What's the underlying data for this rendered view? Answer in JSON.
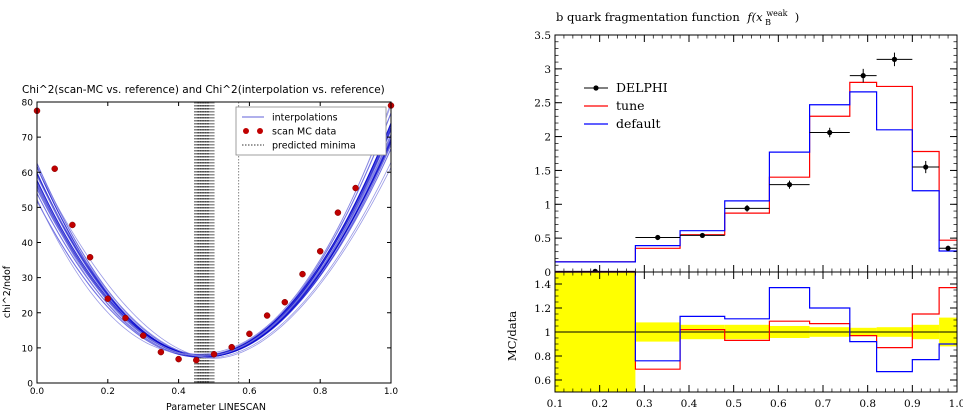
{
  "chart_data": [
    {
      "type": "line",
      "title": "Chi^2(scan-MC vs. reference) and Chi^2(interpolation vs. reference)",
      "xlabel": "Parameter LINESCAN",
      "ylabel": "chi^2/ndof",
      "xlim": [
        0.0,
        1.0
      ],
      "ylim": [
        0,
        80
      ],
      "xticks": [
        "0.0",
        "0.2",
        "0.4",
        "0.6",
        "0.8",
        "1.0"
      ],
      "yticks": [
        "0",
        "10",
        "20",
        "30",
        "40",
        "50",
        "60",
        "70",
        "80"
      ],
      "legend_position": "top-right",
      "legend": [
        "interpolations",
        "scan MC data",
        "predicted minima"
      ],
      "interpolation_curves": [
        {
          "a": 7.6,
          "b": 0.47,
          "k": 225,
          "p": 2.0
        },
        {
          "a": 7.8,
          "b": 0.468,
          "k": 228,
          "p": 2.0
        },
        {
          "a": 7.4,
          "b": 0.472,
          "k": 222,
          "p": 2.0
        },
        {
          "a": 7.7,
          "b": 0.465,
          "k": 231,
          "p": 2.0
        },
        {
          "a": 7.5,
          "b": 0.475,
          "k": 219,
          "p": 2.0
        },
        {
          "a": 7.9,
          "b": 0.47,
          "k": 235,
          "p": 2.0
        },
        {
          "a": 7.3,
          "b": 0.466,
          "k": 215,
          "p": 2.0
        },
        {
          "a": 7.6,
          "b": 0.474,
          "k": 240,
          "p": 2.0
        },
        {
          "a": 7.8,
          "b": 0.462,
          "k": 226,
          "p": 2.0
        },
        {
          "a": 7.5,
          "b": 0.478,
          "k": 229,
          "p": 2.0
        },
        {
          "a": 8.0,
          "b": 0.47,
          "k": 218,
          "p": 2.0
        },
        {
          "a": 7.6,
          "b": 0.471,
          "k": 233,
          "p": 2.0
        },
        {
          "a": 7.4,
          "b": 0.46,
          "k": 210,
          "p": 2.0
        },
        {
          "a": 7.7,
          "b": 0.48,
          "k": 238,
          "p": 2.0
        },
        {
          "a": 7.5,
          "b": 0.469,
          "k": 246,
          "p": 2.0
        },
        {
          "a": 7.8,
          "b": 0.473,
          "k": 212,
          "p": 2.0
        },
        {
          "a": 7.9,
          "b": 0.455,
          "k": 255,
          "p": 2.1
        },
        {
          "a": 7.2,
          "b": 0.49,
          "k": 200,
          "p": 1.9
        },
        {
          "a": 8.2,
          "b": 0.445,
          "k": 262,
          "p": 2.2
        },
        {
          "a": 7.0,
          "b": 0.5,
          "k": 196,
          "p": 1.85
        },
        {
          "a": 7.6,
          "b": 0.47,
          "k": 224,
          "p": 2.0
        },
        {
          "a": 7.7,
          "b": 0.467,
          "k": 221,
          "p": 2.0
        }
      ],
      "scan_points": {
        "x": [
          0.0,
          0.05,
          0.1,
          0.15,
          0.2,
          0.25,
          0.3,
          0.35,
          0.4,
          0.45,
          0.5,
          0.55,
          0.6,
          0.65,
          0.7,
          0.75,
          0.8,
          0.85,
          0.9,
          0.95,
          1.0
        ],
        "y": [
          77.5,
          61.0,
          45.0,
          35.8,
          24.0,
          18.5,
          13.5,
          8.8,
          6.8,
          6.5,
          8.2,
          10.2,
          14.0,
          19.2,
          23.0,
          31.0,
          37.5,
          48.5,
          55.5,
          67.5,
          79.0
        ]
      },
      "predicted_minima": [
        0.445,
        0.448,
        0.451,
        0.453,
        0.455,
        0.457,
        0.459,
        0.461,
        0.463,
        0.465,
        0.467,
        0.469,
        0.471,
        0.473,
        0.475,
        0.477,
        0.479,
        0.481,
        0.483,
        0.485,
        0.488,
        0.491,
        0.494,
        0.497,
        0.5,
        0.57
      ]
    },
    {
      "type": "line",
      "title": "b quark fragmentation function",
      "title_math": "f(x",
      "title_sub": "B",
      "title_sup": "weak",
      "title_tail": ")",
      "xlim": [
        0.1,
        1.0
      ],
      "ylim": [
        0,
        3.5
      ],
      "xticks": [
        "0.1",
        "0.2",
        "0.3",
        "0.4",
        "0.5",
        "0.6",
        "0.7",
        "0.8",
        "0.9",
        "1.0"
      ],
      "yticks": [
        "0",
        "0.5",
        "1",
        "1.5",
        "2",
        "2.5",
        "3",
        "3.5"
      ],
      "legend_position": "top-left",
      "bin_edges": [
        0.1,
        0.28,
        0.38,
        0.48,
        0.58,
        0.67,
        0.76,
        0.82,
        0.9,
        0.96,
        1.0
      ],
      "series": [
        {
          "name": "DELPHI",
          "x": [
            0.19,
            0.33,
            0.43,
            0.53,
            0.625,
            0.715,
            0.79,
            0.86,
            0.93,
            0.98
          ],
          "y": [
            0.01,
            0.51,
            0.54,
            0.94,
            1.29,
            2.06,
            2.9,
            3.14,
            1.55,
            0.35
          ],
          "yerr": [
            0.02,
            0.03,
            0.03,
            0.05,
            0.06,
            0.07,
            0.1,
            0.1,
            0.09,
            0.04
          ]
        },
        {
          "name": "tune",
          "color": "#ff0000",
          "values": [
            0.15,
            0.35,
            0.55,
            0.87,
            1.4,
            2.3,
            2.8,
            2.74,
            1.78,
            0.47
          ]
        },
        {
          "name": "default",
          "color": "#0000ff",
          "values": [
            0.15,
            0.39,
            0.61,
            1.05,
            1.77,
            2.47,
            2.66,
            2.1,
            1.2,
            0.31
          ]
        }
      ],
      "ratio": {
        "ylabel": "MC/data",
        "ylim": [
          0.5,
          1.5
        ],
        "yticks": [
          "0.6",
          "0.8",
          "1",
          "1.2",
          "1.4"
        ],
        "band_color": "#ffff00",
        "band_half_width": [
          0.5,
          0.08,
          0.06,
          0.06,
          0.05,
          0.04,
          0.035,
          0.04,
          0.06,
          0.12
        ],
        "tune": [
          2.0,
          0.69,
          1.02,
          0.93,
          1.09,
          1.07,
          0.97,
          0.87,
          1.15,
          1.37
        ],
        "default": [
          2.0,
          0.76,
          1.13,
          1.11,
          1.37,
          1.2,
          0.92,
          0.67,
          0.77,
          0.9
        ]
      }
    }
  ]
}
